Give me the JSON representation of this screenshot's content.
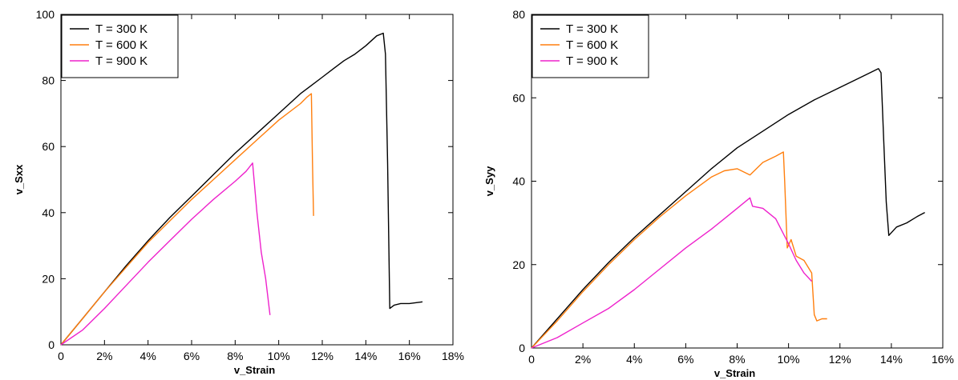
{
  "chart_data": [
    {
      "type": "line",
      "xlabel": "v_Strain",
      "ylabel": "v_Sxx",
      "xlim": [
        0,
        18
      ],
      "ylim": [
        0,
        100
      ],
      "xticks": [
        "0",
        "2%",
        "4%",
        "6%",
        "8%",
        "10%",
        "12%",
        "14%",
        "16%",
        "18%"
      ],
      "yticks": [
        "0",
        "20",
        "40",
        "60",
        "80",
        "100"
      ],
      "legend_position": "top-left",
      "grid": false,
      "series": [
        {
          "name": "T = 300 K",
          "color": "#000000",
          "x": [
            0,
            1,
            2,
            3,
            4,
            5,
            6,
            7,
            8,
            9,
            10,
            11,
            11.5,
            12,
            12.5,
            13,
            13.5,
            14,
            14.5,
            14.8,
            14.9,
            15.0,
            15.1,
            15.3,
            15.6,
            16.0,
            16.6
          ],
          "y": [
            0,
            8,
            16,
            24,
            31.5,
            38.5,
            45,
            51.5,
            58,
            64,
            70,
            76,
            78.5,
            81,
            83.5,
            86,
            88,
            90.5,
            93.5,
            94.3,
            88,
            55,
            11,
            12,
            12.5,
            12.5,
            13
          ]
        },
        {
          "name": "T = 600 K",
          "color": "#ff7f0e",
          "x": [
            0,
            1,
            2,
            3,
            4,
            5,
            6,
            7,
            8,
            9,
            10,
            11,
            11.3,
            11.5,
            11.55,
            11.6
          ],
          "y": [
            0,
            8,
            16,
            23.5,
            31,
            37.5,
            44,
            50,
            56,
            62,
            68,
            73,
            75,
            76,
            55,
            39
          ]
        },
        {
          "name": "T = 900 K",
          "color": "#ee22cc",
          "x": [
            0,
            1,
            2,
            3,
            4,
            5,
            6,
            7,
            8,
            8.5,
            8.8,
            9.0,
            9.2,
            9.4,
            9.6
          ],
          "y": [
            0,
            4.5,
            11,
            18,
            25,
            31.5,
            38,
            44,
            49.5,
            52.5,
            55,
            40,
            28,
            20,
            9
          ]
        }
      ]
    },
    {
      "type": "line",
      "xlabel": "v_Strain",
      "ylabel": "v_Syy",
      "xlim": [
        0,
        16
      ],
      "ylim": [
        0,
        80
      ],
      "xticks": [
        "0",
        "2%",
        "4%",
        "6%",
        "8%",
        "10%",
        "12%",
        "14%",
        "16%"
      ],
      "yticks": [
        "0",
        "20",
        "40",
        "60",
        "80"
      ],
      "legend_position": "top-left",
      "grid": false,
      "series": [
        {
          "name": "T = 300 K",
          "color": "#000000",
          "x": [
            0,
            1,
            2,
            3,
            4,
            5,
            6,
            7,
            8,
            9,
            10,
            11,
            12,
            13,
            13.5,
            13.6,
            13.7,
            13.8,
            13.9,
            14.2,
            14.6,
            15.0,
            15.3
          ],
          "y": [
            0,
            7,
            14,
            20.5,
            26.5,
            32,
            37.5,
            43,
            48,
            52,
            56,
            59.5,
            62.5,
            65.5,
            67,
            66,
            50,
            35,
            27,
            29,
            30,
            31.5,
            32.5
          ]
        },
        {
          "name": "T = 600 K",
          "color": "#ff7f0e",
          "x": [
            0,
            1,
            2,
            3,
            4,
            5,
            6,
            7,
            7.5,
            8,
            8.5,
            9,
            9.5,
            9.8,
            9.85,
            9.95,
            10.1,
            10.3,
            10.6,
            10.9,
            11.0,
            11.1,
            11.3,
            11.5
          ],
          "y": [
            0,
            6.5,
            13.5,
            20,
            26,
            31.5,
            36.5,
            41,
            42.5,
            43,
            41.5,
            44.5,
            46,
            47,
            40,
            24,
            26,
            22,
            21,
            18,
            8,
            6.5,
            7,
            7
          ]
        },
        {
          "name": "T = 900 K",
          "color": "#ee22cc",
          "x": [
            0,
            1,
            2,
            3,
            4,
            5,
            6,
            7,
            7.5,
            8,
            8.5,
            8.6,
            9,
            9.5,
            10,
            10.3,
            10.6,
            10.9
          ],
          "y": [
            0,
            2.5,
            6,
            9.5,
            14,
            19,
            24,
            28.5,
            31,
            33.5,
            36,
            34,
            33.5,
            31,
            25,
            21,
            18,
            16
          ]
        }
      ]
    }
  ]
}
